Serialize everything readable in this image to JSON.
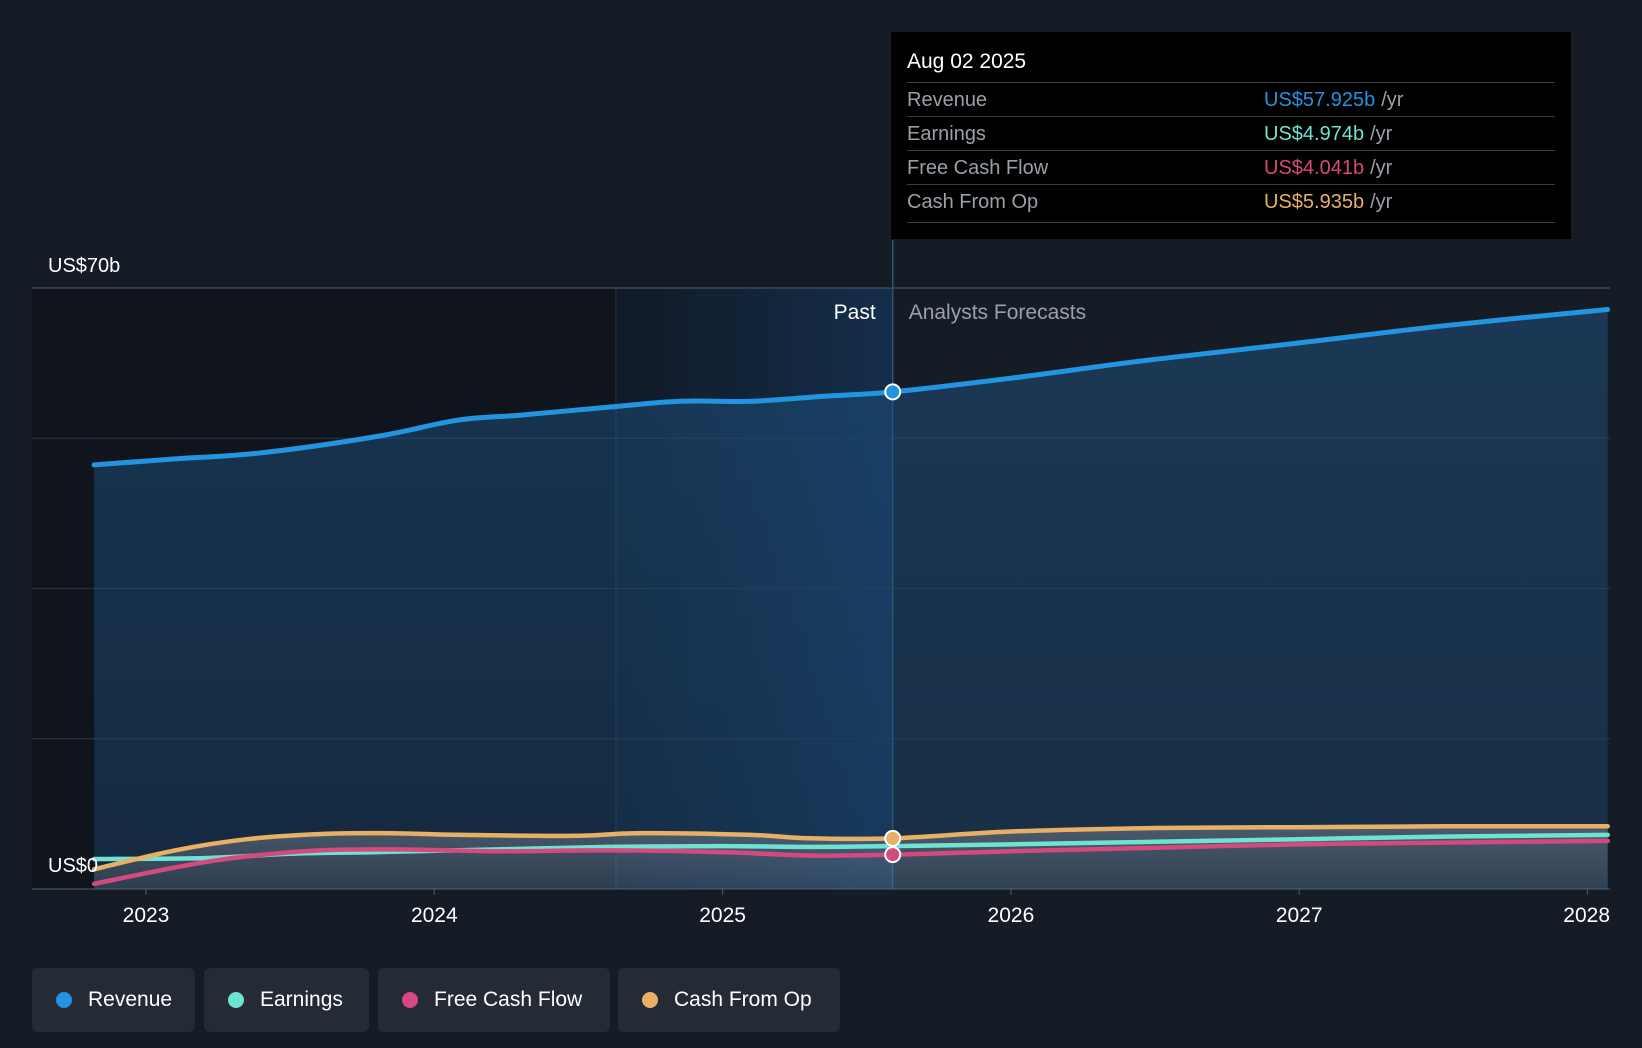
{
  "chart_data": {
    "type": "area",
    "y_label_top": "US$70b",
    "y_label_bottom": "US$0",
    "ylim": [
      0,
      70
    ],
    "x_ticks": [
      "2023",
      "2024",
      "2025",
      "2026",
      "2027",
      "2028"
    ],
    "past_label": "Past",
    "forecast_label": "Analysts Forecasts",
    "colors": {
      "revenue": "#2394df",
      "earnings": "#6fe3d2",
      "fcf": "#d4497e",
      "cfo": "#e8b064"
    },
    "series": [
      {
        "name": "Revenue",
        "key": "revenue",
        "x": [
          2022.82,
          2023.1,
          2023.4,
          2023.8,
          2024.08,
          2024.3,
          2024.6,
          2024.85,
          2025.1,
          2025.35,
          2025.59,
          2026.0,
          2026.5,
          2027.0,
          2027.5,
          2028.07
        ],
        "y": [
          49.4,
          50.1,
          50.8,
          52.7,
          54.6,
          55.2,
          56.1,
          56.8,
          56.8,
          57.4,
          57.9,
          59.5,
          61.7,
          63.6,
          65.6,
          67.5
        ]
      },
      {
        "name": "Earnings",
        "key": "earnings",
        "x": [
          2022.82,
          2023.2,
          2023.5,
          2023.8,
          2024.2,
          2024.6,
          2025.0,
          2025.3,
          2025.59,
          2026.0,
          2026.5,
          2027.0,
          2027.5,
          2028.07
        ],
        "y": [
          3.5,
          3.6,
          4.1,
          4.3,
          4.6,
          4.9,
          5.0,
          4.9,
          5.0,
          5.2,
          5.5,
          5.8,
          6.1,
          6.3
        ]
      },
      {
        "name": "Free Cash Flow",
        "key": "fcf",
        "x": [
          2022.82,
          2023.1,
          2023.3,
          2023.6,
          2023.9,
          2024.2,
          2024.6,
          2025.0,
          2025.3,
          2025.59,
          2026.0,
          2026.5,
          2027.0,
          2027.5,
          2028.07
        ],
        "y": [
          0.6,
          2.5,
          3.6,
          4.5,
          4.6,
          4.4,
          4.5,
          4.3,
          3.9,
          4.0,
          4.4,
          4.8,
          5.2,
          5.4,
          5.6
        ]
      },
      {
        "name": "Cash From Op",
        "key": "cfo",
        "x": [
          2022.82,
          2023.1,
          2023.35,
          2023.6,
          2023.85,
          2024.1,
          2024.5,
          2024.7,
          2025.1,
          2025.3,
          2025.59,
          2026.0,
          2026.5,
          2027.0,
          2027.5,
          2028.07
        ],
        "y": [
          2.3,
          4.5,
          5.8,
          6.4,
          6.5,
          6.3,
          6.2,
          6.5,
          6.3,
          5.9,
          5.9,
          6.7,
          7.1,
          7.2,
          7.3,
          7.3
        ]
      }
    ],
    "highlight_x": 2025.59
  },
  "tooltip": {
    "date": "Aug 02 2025",
    "unit": "/yr",
    "rows": [
      {
        "label": "Revenue",
        "value": "US$57.925b",
        "color": "#2394df"
      },
      {
        "label": "Earnings",
        "value": "US$4.974b",
        "color": "#6fe3d2"
      },
      {
        "label": "Free Cash Flow",
        "value": "US$4.041b",
        "color": "#d4497e"
      },
      {
        "label": "Cash From Op",
        "value": "US$5.935b",
        "color": "#e8b064"
      }
    ]
  },
  "legend": [
    {
      "label": "Revenue",
      "color": "#2394df"
    },
    {
      "label": "Earnings",
      "color": "#6fe3d2"
    },
    {
      "label": "Free Cash Flow",
      "color": "#d4497e"
    },
    {
      "label": "Cash From Op",
      "color": "#e8b064"
    }
  ]
}
